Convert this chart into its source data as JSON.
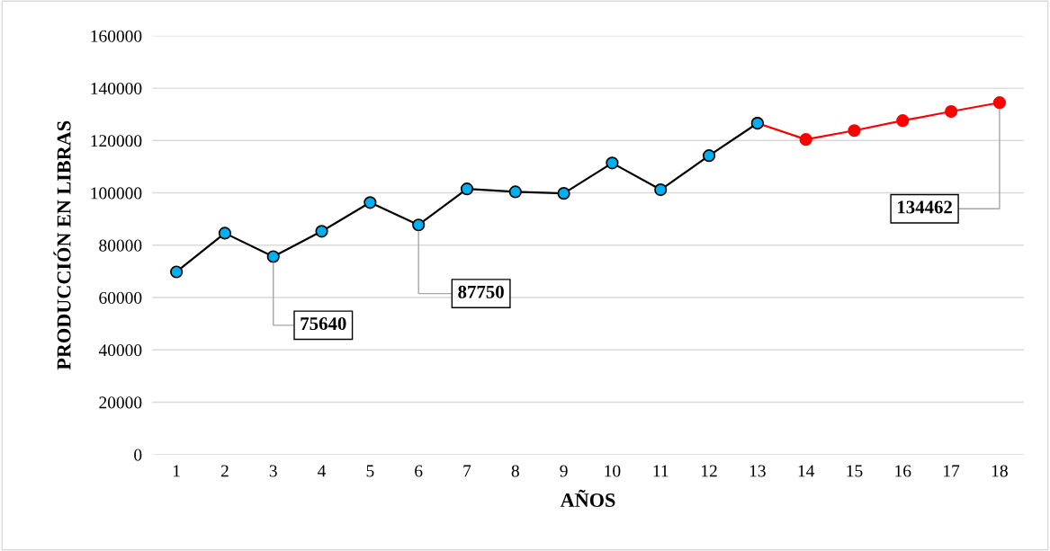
{
  "chart_data": {
    "type": "line",
    "xlabel": "AÑOS",
    "ylabel": "PRODUCCIÓN EN LIBRAS",
    "categories": [
      "1",
      "2",
      "3",
      "4",
      "5",
      "6",
      "7",
      "8",
      "9",
      "10",
      "11",
      "12",
      "13",
      "14",
      "15",
      "16",
      "17",
      "18"
    ],
    "series": [
      {
        "color": "#ff0000",
        "colors": [
          "#ff0000",
          "#ff0000",
          "#ff0000",
          "#ff0000",
          "#ff0000",
          "#ff0000",
          "#ff0000",
          "#ff0000",
          "#ff0000",
          "#ff0000",
          "#ff0000",
          "#ff0000",
          "#ff0000",
          "#ff0000",
          "#ff0000",
          "#ff0000",
          "#ff0000",
          "#ff0000"
        ],
        "values": [
          null,
          null,
          null,
          null,
          null,
          null,
          null,
          null,
          null,
          null,
          null,
          null,
          126600,
          120400,
          123800,
          127600,
          131100,
          134462
        ]
      },
      {
        "color": "#000000",
        "colors": [
          "#00b0f0",
          "#00b0f0",
          "#00b0f0",
          "#00b0f0",
          "#00b0f0",
          "#00b0f0",
          "#00b0f0",
          "#00b0f0",
          "#00b0f0",
          "#00b0f0",
          "#00b0f0",
          "#00b0f0",
          "#00b0f0",
          "#00b0f0",
          "#00b0f0",
          "#00b0f0",
          "#00b0f0",
          "#00b0f0"
        ],
        "values": [
          69800,
          84600,
          75640,
          85300,
          96300,
          87750,
          101500,
          100400,
          99800,
          111400,
          101200,
          114200,
          126600,
          null,
          null,
          null,
          null,
          null
        ]
      }
    ],
    "ylim": [
      0,
      160000
    ],
    "yticks": [
      0,
      20000,
      40000,
      60000,
      80000,
      100000,
      120000,
      140000,
      160000
    ],
    "grid": "y",
    "marker": "circle",
    "line_style": "solid",
    "annotations": [
      {
        "text": "75640",
        "x": "3",
        "y": 75640
      },
      {
        "text": "87750",
        "x": "6",
        "y": 87750
      },
      {
        "text": "134462",
        "x": "18",
        "y": 134462
      }
    ]
  }
}
